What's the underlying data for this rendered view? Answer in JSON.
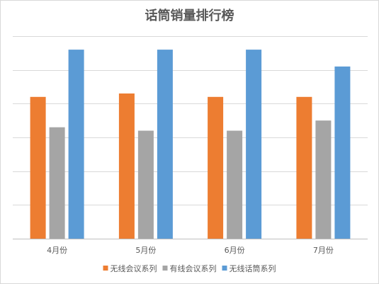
{
  "chart_data": {
    "type": "bar",
    "title": "话筒销量排行榜",
    "categories": [
      "4月份",
      "5月份",
      "6月份",
      "7月份"
    ],
    "series": [
      {
        "name": "无线会议系列",
        "color": "#ed7d31",
        "values": [
          4.2,
          4.3,
          4.2,
          4.2
        ]
      },
      {
        "name": "有线会议系列",
        "color": "#a5a5a5",
        "values": [
          3.3,
          3.2,
          3.2,
          3.5
        ]
      },
      {
        "name": "无线话筒系列",
        "color": "#5b9bd5",
        "values": [
          5.6,
          5.6,
          5.6,
          5.1
        ]
      }
    ],
    "ylim": [
      0,
      6
    ],
    "grid": true,
    "y_tick_labels_shown": false,
    "legend": "bottom"
  }
}
